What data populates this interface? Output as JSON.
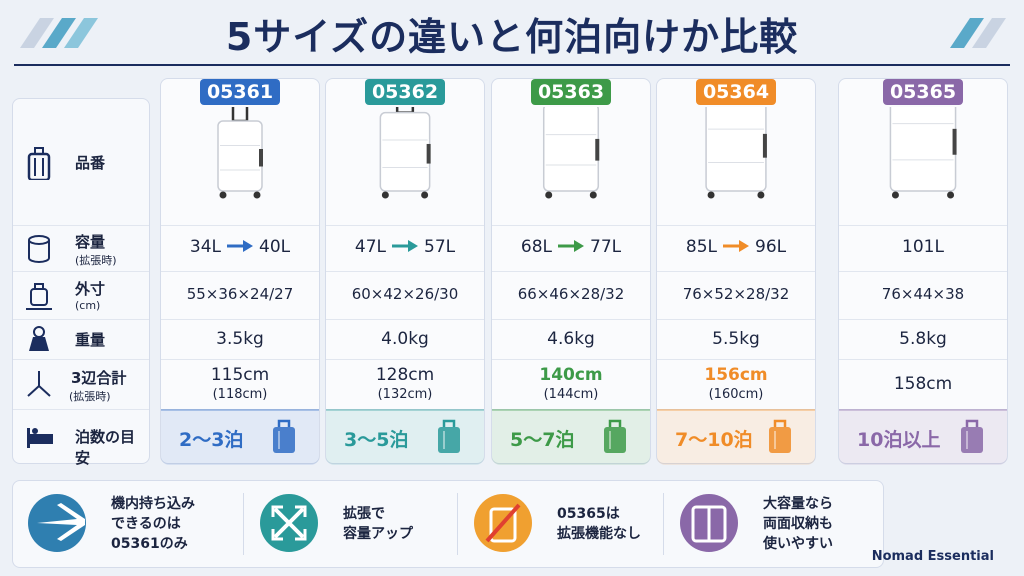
{
  "title": "5サイズの違いと何泊向けか比較",
  "row_labels": [
    {
      "label": "品番"
    },
    {
      "label": "容量",
      "sub": "(拡張時)"
    },
    {
      "label": "外寸",
      "sub": "(cm)"
    },
    {
      "label": "重量"
    },
    {
      "label": "3辺合計",
      "sub": "(拡張時)"
    },
    {
      "label": "泊数の目安"
    }
  ],
  "columns": [
    {
      "id": "05361",
      "color": "#2f6cc4",
      "capacity": [
        "34L",
        "40L"
      ],
      "dimensions": "55×36×24/27",
      "weight": "3.5kg",
      "total": "115cm",
      "total_expanded": "(118cm)",
      "total_highlight": false,
      "nights": "2〜3泊"
    },
    {
      "id": "05362",
      "color": "#2a9a9a",
      "capacity": [
        "47L",
        "57L"
      ],
      "dimensions": "60×42×26/30",
      "weight": "4.0kg",
      "total": "128cm",
      "total_expanded": "(132cm)",
      "total_highlight": false,
      "nights": "3〜5泊"
    },
    {
      "id": "05363",
      "color": "#3d9a48",
      "capacity": [
        "68L",
        "77L"
      ],
      "dimensions": "66×46×28/32",
      "weight": "4.6kg",
      "total": "140cm",
      "total_expanded": "(144cm)",
      "total_highlight": true,
      "nights": "5〜7泊"
    },
    {
      "id": "05364",
      "color": "#f08c28",
      "capacity": [
        "85L",
        "96L"
      ],
      "dimensions": "76×52×28/32",
      "weight": "5.5kg",
      "total": "156cm",
      "total_expanded": "(160cm)",
      "total_highlight": true,
      "nights": "7〜10泊"
    },
    {
      "id": "05365",
      "color": "#8a68a8",
      "capacity": [
        "101L"
      ],
      "dimensions": "76×44×38",
      "weight": "5.8kg",
      "total": "158cm",
      "nights": "10泊以上"
    }
  ],
  "notes": [
    {
      "lines": [
        "機内持ち込み",
        "できるのは",
        "05361のみ"
      ],
      "color": "#2f7fb0"
    },
    {
      "lines": [
        "拡張で",
        "容量アップ"
      ],
      "color": "#2a9a9a"
    },
    {
      "lines": [
        "05365は",
        "拡張機能なし"
      ],
      "color": "#f0a030"
    },
    {
      "lines": [
        "大容量なら",
        "両面収納も",
        "使いやすい"
      ],
      "color": "#8a68a8"
    }
  ],
  "brand": "Nomad Essential"
}
